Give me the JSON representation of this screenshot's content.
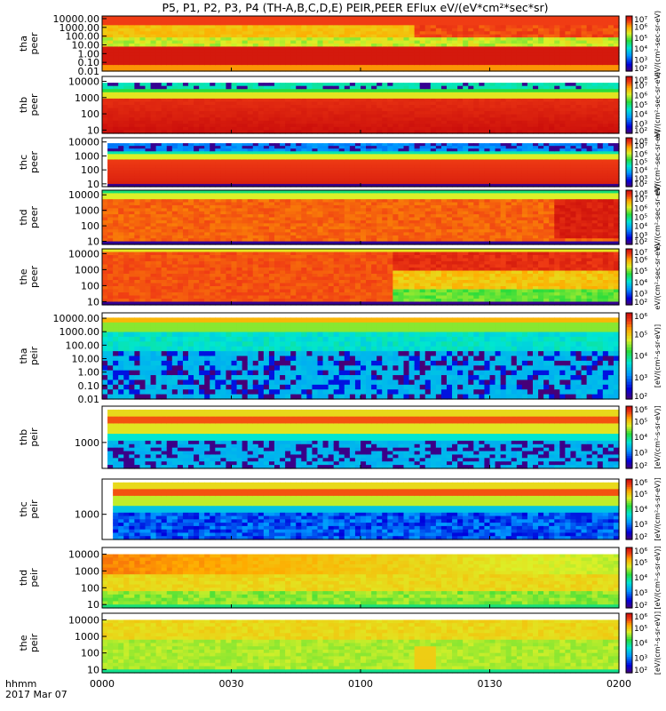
{
  "title": "P5, P1, P2, P3, P4 (TH-A,B,C,D,E) PEIR,PEER EFlux eV/(eV*cm²*sec*sr)",
  "footer": {
    "line1": "hhmm",
    "line2": "2017 Mar 07"
  },
  "x_ticks": [
    "0000",
    "0030",
    "0100",
    "0130",
    "0200"
  ],
  "colorbar_units": {
    "peer": "eV/(cm²-sec-sr-eV)",
    "peir": "[eV/(cm²-s-sr-eV)]"
  },
  "colors": {
    "frame": "#000000",
    "background": "#ffffff"
  },
  "chart_data": {
    "type": "heatmap",
    "x_range_hhmm": [
      "0000",
      "0200"
    ],
    "panels": [
      {
        "id": "tha-peer",
        "label": [
          "tha",
          "peer"
        ],
        "yticks": [
          "10000.00",
          "1000.00",
          "100.00",
          "10.00",
          "1.00",
          "0.10",
          "0.01"
        ],
        "ylog": [
          -2,
          4.3
        ],
        "cb": [
          "10⁷",
          "10⁶",
          "10⁵",
          "10⁴",
          "10³",
          "10²"
        ],
        "cb_range": [
          2,
          7
        ],
        "unit": "peer",
        "pattern": "tha_peer"
      },
      {
        "id": "thb-peer",
        "label": [
          "thb",
          "peer"
        ],
        "yticks": [
          "10000",
          "1000",
          "100",
          "10"
        ],
        "ylog": [
          0.8,
          4.3
        ],
        "cb": [
          "10⁸",
          "10⁷",
          "10⁶",
          "10⁵",
          "10⁴",
          "10³",
          "10²"
        ],
        "cb_range": [
          2,
          8
        ],
        "unit": "peer",
        "pattern": "thb_peer"
      },
      {
        "id": "thc-peer",
        "label": [
          "thc",
          "peer"
        ],
        "yticks": [
          "10000",
          "1000",
          "100",
          "10"
        ],
        "ylog": [
          0.8,
          4.3
        ],
        "cb": [
          "10⁸",
          "10⁷",
          "10⁶",
          "10⁵",
          "10⁴",
          "10³",
          "10²"
        ],
        "cb_range": [
          2,
          8
        ],
        "unit": "peer",
        "pattern": "thc_peer"
      },
      {
        "id": "thd-peer",
        "label": [
          "thd",
          "peer"
        ],
        "yticks": [
          "10000",
          "1000",
          "100",
          "10"
        ],
        "ylog": [
          0.8,
          4.3
        ],
        "cb": [
          "10⁸",
          "10⁷",
          "10⁶",
          "10⁵",
          "10⁴",
          "10³",
          "10²"
        ],
        "cb_range": [
          2,
          8
        ],
        "unit": "peer",
        "pattern": "thd_peer"
      },
      {
        "id": "the-peer",
        "label": [
          "the",
          "peer"
        ],
        "yticks": [
          "10000",
          "1000",
          "100",
          "10"
        ],
        "ylog": [
          0.8,
          4.3
        ],
        "cb": [
          "10⁷",
          "10⁶",
          "10⁵",
          "10⁴",
          "10³",
          "10²"
        ],
        "cb_range": [
          2,
          7
        ],
        "unit": "peer",
        "pattern": "the_peer"
      },
      {
        "id": "tha-peir",
        "label": [
          "tha",
          "peir"
        ],
        "yticks": [
          "10000.00",
          "1000.00",
          "100.00",
          "10.00",
          "1.00",
          "0.10",
          "0.01"
        ],
        "ylog": [
          -2,
          4.4
        ],
        "cb": [
          "10⁶",
          "10⁵",
          "10⁴",
          "10³",
          "10²"
        ],
        "cb_range": [
          2,
          6
        ],
        "unit": "peir",
        "pattern": "tha_peir"
      },
      {
        "id": "thb-peir",
        "label": [
          "thb",
          "peir"
        ],
        "yticks": [
          "1000"
        ],
        "ylog": [
          2.0,
          4.4
        ],
        "cb": [
          "10⁶",
          "10⁵",
          "10⁴",
          "10³",
          "10²"
        ],
        "cb_range": [
          2,
          6
        ],
        "unit": "peir",
        "pattern": "thb_peir"
      },
      {
        "id": "thc-peir",
        "label": [
          "thc",
          "peir"
        ],
        "yticks": [
          "1000"
        ],
        "ylog": [
          2.0,
          4.4
        ],
        "cb": [
          "10⁶",
          "10⁵",
          "10⁴",
          "10³",
          "10²"
        ],
        "cb_range": [
          2,
          6
        ],
        "unit": "peir",
        "pattern": "thc_peir"
      },
      {
        "id": "thd-peir",
        "label": [
          "thd",
          "peir"
        ],
        "yticks": [
          "10000",
          "1000",
          "100",
          "10"
        ],
        "ylog": [
          0.8,
          4.4
        ],
        "cb": [
          "10⁶",
          "10⁵",
          "10⁴",
          "10³",
          "10²"
        ],
        "cb_range": [
          2,
          6
        ],
        "unit": "peir",
        "pattern": "thd_peir"
      },
      {
        "id": "the-peir",
        "label": [
          "the",
          "peir"
        ],
        "yticks": [
          "10000",
          "1000",
          "100",
          "10"
        ],
        "ylog": [
          0.8,
          4.4
        ],
        "cb": [
          "10⁶",
          "10⁵",
          "10⁴",
          "10³",
          "10²"
        ],
        "cb_range": [
          2,
          6
        ],
        "unit": "peir",
        "pattern": "the_peir"
      }
    ]
  }
}
